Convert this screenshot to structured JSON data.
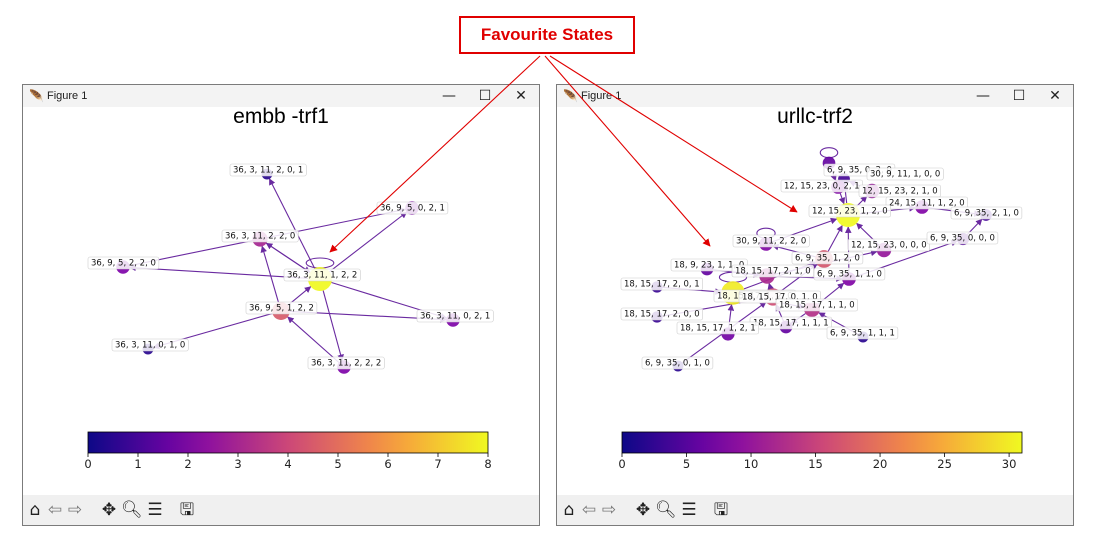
{
  "annotation": {
    "label": "Favourite States",
    "color": "#e00000"
  },
  "left_window": {
    "title": "Figure 1",
    "figure_title": "embb -trf1",
    "colorbar": {
      "min": 0,
      "max": 8,
      "ticks": [
        "0",
        "1",
        "2",
        "3",
        "4",
        "5",
        "6",
        "7",
        "8"
      ],
      "colormap": "plasma"
    },
    "nodes": [
      {
        "label": "36, 3, 11, 2, 0, 1",
        "value": 0.5
      },
      {
        "label": "36, 9, 5, 0, 2, 1",
        "value": 2
      },
      {
        "label": "36, 3, 11, 2, 2, 0",
        "value": 3
      },
      {
        "label": "36, 9, 5, 2, 2, 0",
        "value": 2
      },
      {
        "label": "36, 3, 11, 1, 2, 2",
        "value": 8
      },
      {
        "label": "36, 9, 5, 1, 2, 2",
        "value": 4.5
      },
      {
        "label": "36, 3, 11, 0, 2, 1",
        "value": 2
      },
      {
        "label": "36, 3, 11, 0, 1, 0",
        "value": 0.5
      },
      {
        "label": "36, 3, 11, 2, 2, 2",
        "value": 2
      }
    ]
  },
  "right_window": {
    "title": "Figure 1",
    "figure_title": "urllc-trf2",
    "colorbar": {
      "min": 0,
      "max": 31,
      "ticks": [
        "0",
        "5",
        "10",
        "15",
        "20",
        "25",
        "30"
      ],
      "colormap": "plasma"
    },
    "nodes": [
      {
        "label": "6, 9, 35, 0, 2, 0",
        "value": 6
      },
      {
        "label": "30, 9, 11, 1, 0, 0",
        "value": 4
      },
      {
        "label": "12, 15, 23, 0, 2, 1",
        "value": 8
      },
      {
        "label": "12, 15, 23, 2, 1, 0",
        "value": 10
      },
      {
        "label": "24, 15, 11, 1, 2, 0",
        "value": 8
      },
      {
        "label": "12, 15, 23, 1, 2, 0",
        "value": 31
      },
      {
        "label": "6, 9, 35, 2, 1, 0",
        "value": 4
      },
      {
        "label": "30, 9, 11, 2, 2, 0",
        "value": 8
      },
      {
        "label": "12, 15, 23, 0, 0, 0",
        "value": 10
      },
      {
        "label": "6, 9, 35, 0, 0, 0",
        "value": 5
      },
      {
        "label": "18, 9, 23, 1, 1, 0",
        "value": 6
      },
      {
        "label": "18, 15, 17, 2, 1, 0",
        "value": 12
      },
      {
        "label": "6, 9, 35, 1, 2, 0",
        "value": 17
      },
      {
        "label": "6, 9, 35, 1, 1, 0",
        "value": 8
      },
      {
        "label": "18, 15, 17, 2, 0, 1",
        "value": 3
      },
      {
        "label": "18, 15, 17, 1, 2, 0",
        "value": 30
      },
      {
        "label": "18, 15, 17, 0, 1, 0",
        "value": 16
      },
      {
        "label": "18, 15, 17, 1, 1, 0",
        "value": 13
      },
      {
        "label": "18, 15, 17, 2, 0, 0",
        "value": 3
      },
      {
        "label": "18, 15, 17, 1, 1, 1",
        "value": 6
      },
      {
        "label": "18, 15, 17, 1, 2, 1",
        "value": 7
      },
      {
        "label": "6, 9, 35, 1, 1, 1",
        "value": 2
      },
      {
        "label": "6, 9, 35, 0, 1, 0",
        "value": 2
      }
    ]
  },
  "toolbar_icons": [
    "home-icon",
    "back-arrow-icon",
    "forward-arrow-icon",
    "pan-icon",
    "zoom-icon",
    "configure-subplots-icon",
    "save-icon"
  ],
  "window_controls": {
    "minimize": "—",
    "maximize": "☐",
    "close": "✕"
  }
}
